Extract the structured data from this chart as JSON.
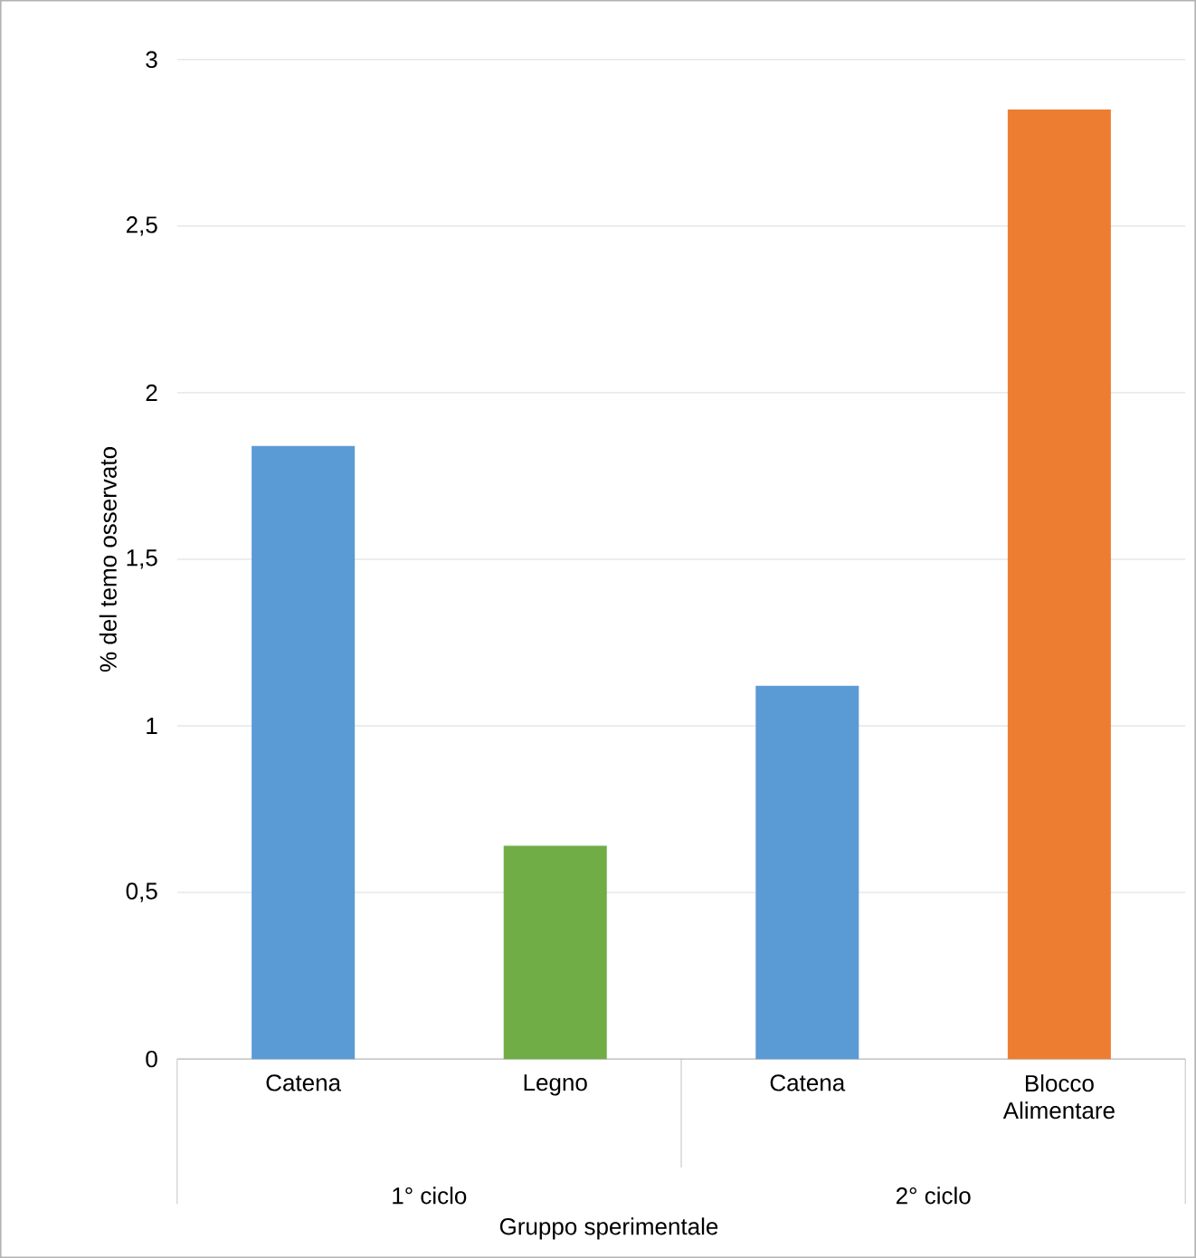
{
  "chart_data": {
    "type": "bar",
    "ylabel": "% del temo osservato",
    "xlabel": "Gruppo sperimentale",
    "categories": [
      "Catena",
      "Legno",
      "Catena",
      "Blocco Alimentare"
    ],
    "values": [
      1.84,
      0.64,
      1.12,
      2.85
    ],
    "colors": [
      "#5b9bd5",
      "#70ad47",
      "#5b9bd5",
      "#ed7d31"
    ],
    "ylim": [
      0,
      3
    ],
    "yticks": [
      0,
      {
        "value": 0.5,
        "label": "0,5"
      },
      1,
      {
        "value": 1.5,
        "label": "1,5"
      },
      2,
      {
        "value": 2.5,
        "label": "2,5"
      },
      3
    ],
    "grid": "y",
    "annotations": [
      "1° ciclo",
      "2° ciclo"
    ]
  }
}
